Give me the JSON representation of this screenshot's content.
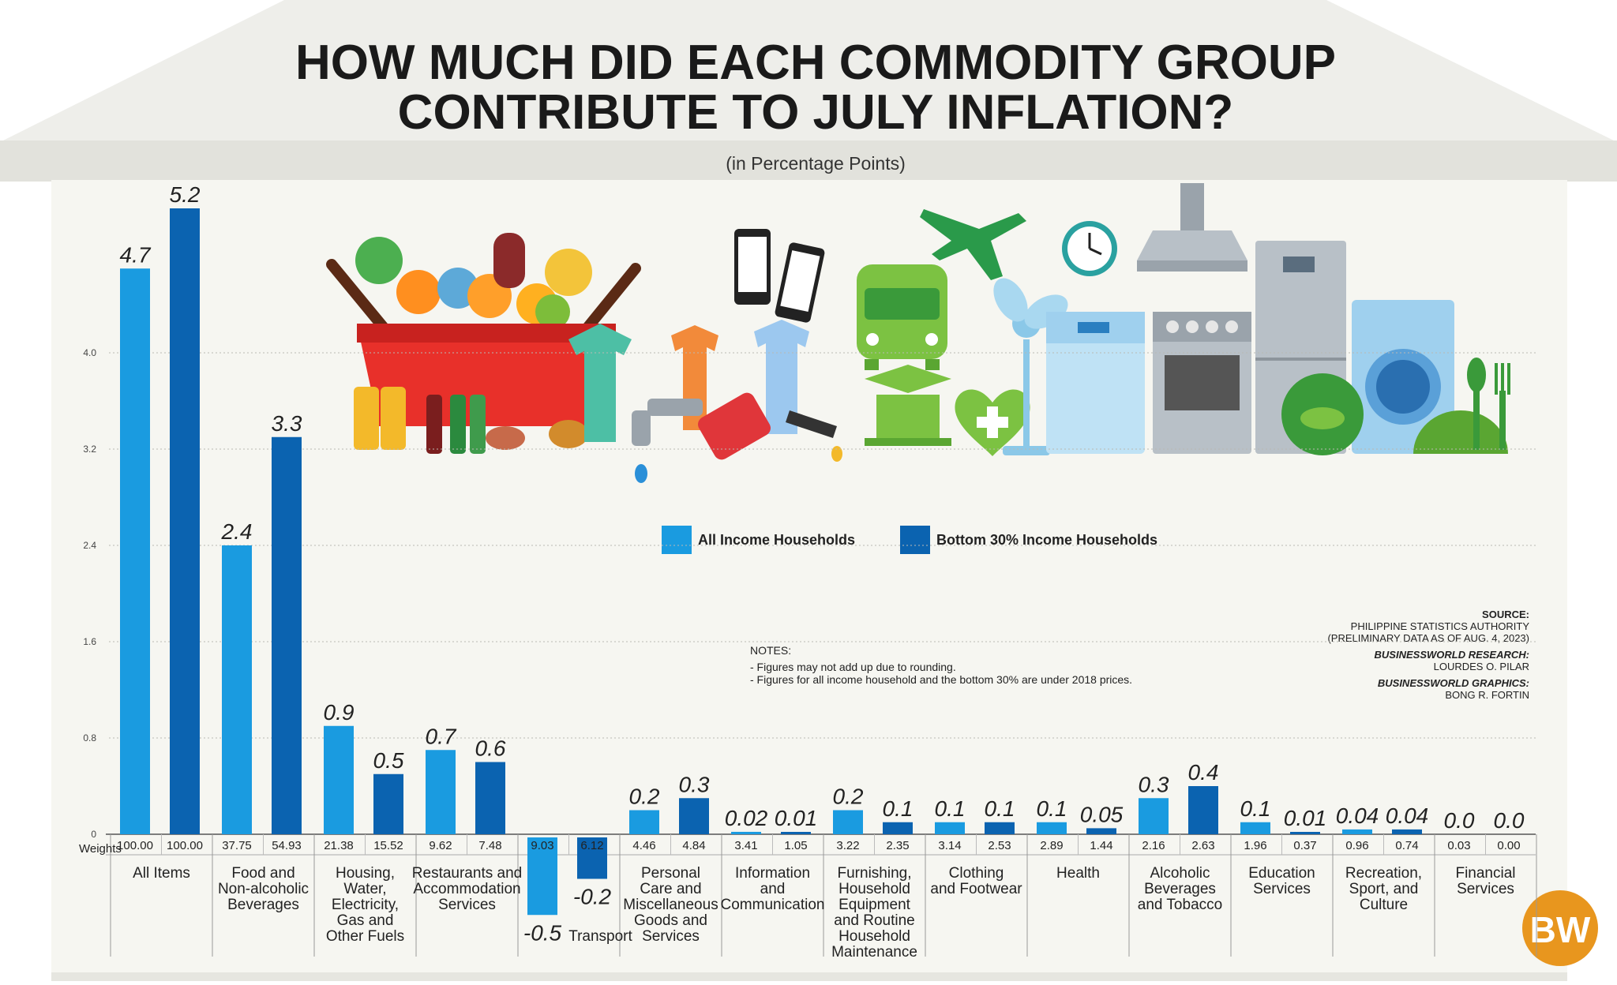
{
  "title_lines": [
    "HOW MUCH DID EACH COMMODITY GROUP",
    "CONTRIBUTE TO JULY INFLATION?"
  ],
  "subtitle": "(in Percentage Points)",
  "weights_label": "Weights",
  "notes": {
    "heading": "NOTES:",
    "lines": [
      "- Figures may not add up due to rounding.",
      "- Figures for all income household and the bottom 30% are under 2018 prices."
    ]
  },
  "source": {
    "lines": [
      "SOURCE:",
      "PHILIPPINE STATISTICS AUTHORITY",
      "(PRELIMINARY DATA AS OF AUG. 4, 2023)"
    ],
    "research_label": "BUSINESSWORLD RESEARCH:",
    "research_name": "LOURDES O. PILAR",
    "graphics_label": "BUSINESSWORLD GRAPHICS:",
    "graphics_name": "BONG R. FORTIN"
  },
  "logo_text": "BW",
  "colors": {
    "all_income": "#1a9be0",
    "bottom30": "#0b63b0",
    "background": "#f5f5f0",
    "roof": "#ecece6",
    "logo": "#e8961e"
  },
  "chart_data": {
    "type": "bar",
    "ylim": [
      0,
      5.2
    ],
    "yticks": [
      0,
      0.8,
      1.6,
      2.4,
      3.2,
      4.0
    ],
    "ytick_labels": [
      "0",
      "0.8",
      "1.6",
      "2.4",
      "3.2",
      "4.0"
    ],
    "grid": true,
    "legend_position": "center",
    "categories": [
      {
        "label": [
          "All Items"
        ],
        "all_value": "4.7",
        "bottom_value": "5.2",
        "all_weight": "100.00",
        "bottom_weight": "100.00"
      },
      {
        "label": [
          "Food and",
          "Non-alcoholic",
          "Beverages"
        ],
        "all_value": "2.4",
        "bottom_value": "3.3",
        "all_weight": "37.75",
        "bottom_weight": "54.93"
      },
      {
        "label": [
          "Housing,",
          "Water,",
          "Electricity,",
          "Gas and",
          "Other Fuels"
        ],
        "all_value": "0.9",
        "bottom_value": "0.5",
        "all_weight": "21.38",
        "bottom_weight": "15.52"
      },
      {
        "label": [
          "Restaurants and",
          "Accommodation",
          "Services"
        ],
        "all_value": "0.7",
        "bottom_value": "0.6",
        "all_weight": "9.62",
        "bottom_weight": "7.48"
      },
      {
        "label": [
          "Transport"
        ],
        "all_value": "-0.5",
        "bottom_value": "-0.2",
        "all_weight": "9.03",
        "bottom_weight": "6.12"
      },
      {
        "label": [
          "Personal",
          "Care and",
          "Miscellaneous",
          "Goods and",
          "Services"
        ],
        "all_value": "0.2",
        "bottom_value": "0.3",
        "all_weight": "4.46",
        "bottom_weight": "4.84"
      },
      {
        "label": [
          "Information",
          "and",
          "Communication"
        ],
        "all_value": "0.02",
        "bottom_value": "0.01",
        "all_weight": "3.41",
        "bottom_weight": "1.05"
      },
      {
        "label": [
          "Furnishing,",
          "Household",
          "Equipment",
          "and Routine",
          "Household",
          "Maintenance"
        ],
        "all_value": "0.2",
        "bottom_value": "0.1",
        "all_weight": "3.22",
        "bottom_weight": "2.35"
      },
      {
        "label": [
          "Clothing",
          "and Footwear"
        ],
        "all_value": "0.1",
        "bottom_value": "0.1",
        "all_weight": "3.14",
        "bottom_weight": "2.53"
      },
      {
        "label": [
          "Health"
        ],
        "all_value": "0.1",
        "bottom_value": "0.05",
        "all_weight": "2.89",
        "bottom_weight": "1.44"
      },
      {
        "label": [
          "Alcoholic",
          "Beverages",
          "and Tobacco"
        ],
        "all_value": "0.3",
        "bottom_value": "0.4",
        "all_weight": "2.16",
        "bottom_weight": "2.63"
      },
      {
        "label": [
          "Education",
          "Services"
        ],
        "all_value": "0.1",
        "bottom_value": "0.01",
        "all_weight": "1.96",
        "bottom_weight": "0.37"
      },
      {
        "label": [
          "Recreation,",
          "Sport, and",
          "Culture"
        ],
        "all_value": "0.04",
        "bottom_value": "0.04",
        "all_weight": "0.96",
        "bottom_weight": "0.74"
      },
      {
        "label": [
          "Financial",
          "Services"
        ],
        "all_value": "0.0",
        "bottom_value": "0.0",
        "all_weight": "0.03",
        "bottom_weight": "0.00"
      }
    ],
    "series": [
      {
        "name": "All Income Households",
        "key": "all"
      },
      {
        "name": "Bottom 30% Income Households",
        "key": "bottom"
      }
    ]
  },
  "illustration_icons": [
    "grocery-basket-icon",
    "oil-bottle-icon",
    "shirt-icon",
    "mobile-phone-icon",
    "bus-icon",
    "airplane-icon",
    "graduation-cap-icon",
    "heart-health-icon",
    "electric-fan-icon",
    "wall-clock-icon",
    "range-hood-icon",
    "dishwasher-icon",
    "stove-icon",
    "refrigerator-icon",
    "washing-machine-icon",
    "fish-plate-icon",
    "cutlery-icon",
    "fuel-nozzle-icon",
    "water-faucet-icon"
  ]
}
